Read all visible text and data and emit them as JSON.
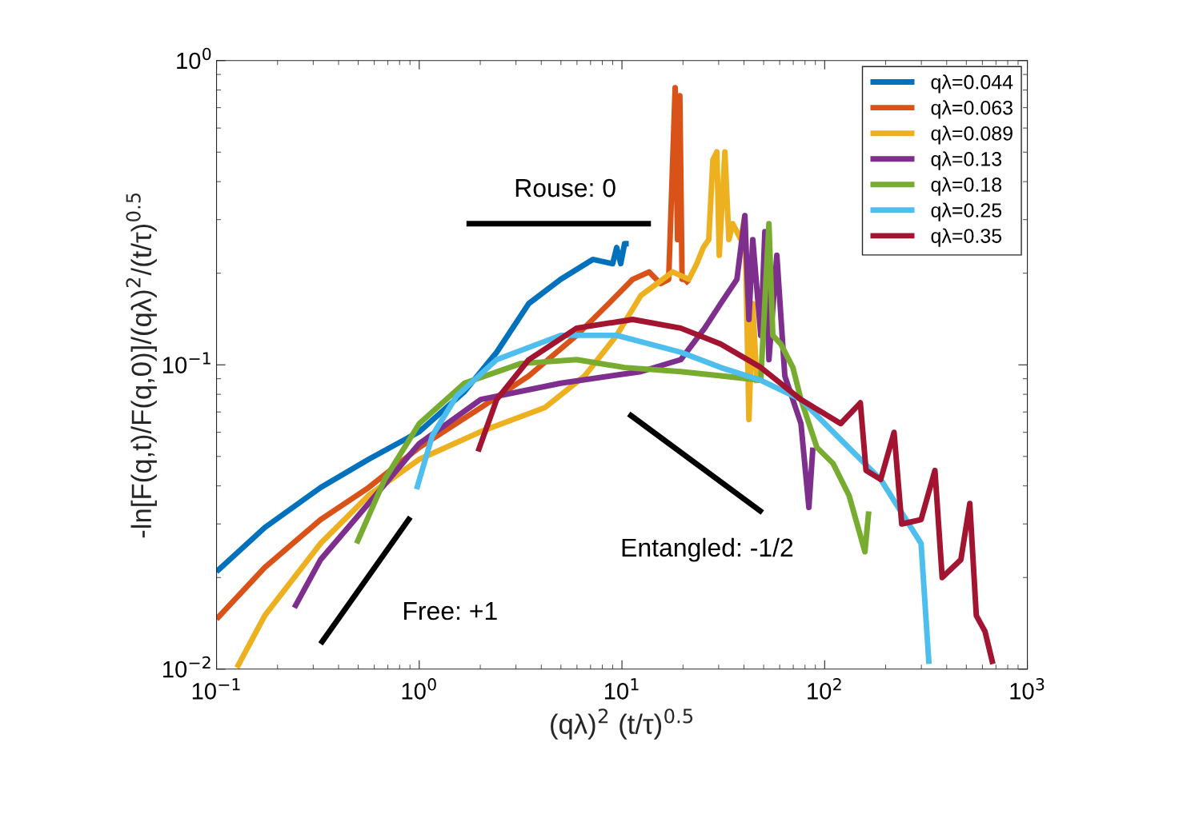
{
  "chart_data": {
    "type": "line",
    "xlabel": "(qλ)$^{2}$ (t/τ)$^{0.5}$",
    "ylabel": "-ln[F(q,t)/F(q,0)]/(qλ)$^{2}$/(t/τ)$^{0.5}$",
    "log": "xy",
    "grid": false,
    "legend": "top right",
    "line_style": "solid",
    "marker": "none",
    "xlim": [
      0.1,
      1000
    ],
    "ylim": [
      0.01,
      1
    ],
    "xticks": [
      {
        "value": 0.1,
        "label": "10$^{−1}$"
      },
      {
        "value": 1,
        "label": "10$^{0}$"
      },
      {
        "value": 10,
        "label": "10$^{1}$"
      },
      {
        "value": 100,
        "label": "10$^{2}$"
      },
      {
        "value": 1000,
        "label": "10$^{3}$"
      }
    ],
    "yticks": [
      {
        "value": 0.01,
        "label": "10$^{−2}$"
      },
      {
        "value": 0.1,
        "label": "10$^{−1}$"
      },
      {
        "value": 1,
        "label": "10$^{0}$"
      }
    ],
    "series": [
      {
        "name": "qλ=0.044",
        "color": "#0072bd",
        "x": [
          0.1,
          0.173,
          0.326,
          0.562,
          1.0,
          1.67,
          2.41,
          3.47,
          4.99,
          7.18,
          9.0,
          9.42,
          9.86,
          10.3,
          10.8
        ],
        "values": [
          0.0209,
          0.0292,
          0.0395,
          0.0489,
          0.0603,
          0.0816,
          0.11,
          0.159,
          0.191,
          0.222,
          0.215,
          0.243,
          0.215,
          0.25,
          0.25
        ]
      },
      {
        "name": "qλ=0.063",
        "color": "#d95319",
        "x": [
          0.1,
          0.173,
          0.326,
          0.562,
          1.0,
          2.01,
          3.47,
          5.98,
          8.61,
          11.3,
          13.6,
          15.5,
          17.0,
          18.3,
          18.8,
          19.3,
          19.8,
          20.4,
          21.4
        ],
        "values": [
          0.0146,
          0.0216,
          0.031,
          0.0395,
          0.0535,
          0.0723,
          0.092,
          0.125,
          0.159,
          0.191,
          0.202,
          0.185,
          0.191,
          0.814,
          0.258,
          0.766,
          0.191,
          0.191,
          0.185
        ]
      },
      {
        "name": "qλ=0.089",
        "color": "#edb120",
        "x": [
          0.126,
          0.173,
          0.326,
          0.562,
          1.0,
          2.01,
          4.16,
          6.55,
          9.42,
          12.4,
          14.9,
          17.8,
          21.4,
          23.4,
          25.2,
          26.8,
          28.1,
          29.4,
          30.2,
          32.2,
          33.7,
          35.2,
          38.6,
          40.4,
          42.3,
          44.2,
          46.3
        ],
        "values": [
          0.0101,
          0.015,
          0.0259,
          0.0372,
          0.0489,
          0.0603,
          0.0723,
          0.092,
          0.125,
          0.169,
          0.185,
          0.202,
          0.191,
          0.215,
          0.243,
          0.258,
          0.472,
          0.501,
          0.229,
          0.501,
          0.258,
          0.291,
          0.258,
          0.309,
          0.0661,
          0.159,
          0.087
        ]
      },
      {
        "name": "qλ=0.13",
        "color": "#7e2f8e",
        "x": [
          0.242,
          0.326,
          0.562,
          1.0,
          2.01,
          4.99,
          12.4,
          19.5,
          25.6,
          30.7,
          36.9,
          40.4,
          42.3,
          44.2,
          48.4,
          50.7,
          53.1,
          58.1,
          63.6,
          76.4,
          83.6,
          87.5
        ],
        "values": [
          0.0159,
          0.0229,
          0.035,
          0.0551,
          0.0769,
          0.087,
          0.095,
          0.104,
          0.132,
          0.159,
          0.191,
          0.309,
          0.141,
          0.258,
          0.125,
          0.274,
          0.104,
          0.229,
          0.092,
          0.0641,
          0.034,
          0.0535
        ]
      },
      {
        "name": "qλ=0.18",
        "color": "#77ac30",
        "x": [
          0.491,
          0.675,
          1.0,
          1.67,
          3.17,
          5.98,
          10.3,
          19.5,
          30.7,
          48.4,
          53.1,
          55.5,
          60.8,
          69.7,
          76.4,
          91.6,
          110,
          132,
          158,
          165
        ],
        "values": [
          0.0259,
          0.042,
          0.0641,
          0.087,
          0.101,
          0.104,
          0.098,
          0.095,
          0.092,
          0.089,
          0.291,
          0.125,
          0.117,
          0.098,
          0.0769,
          0.0535,
          0.0474,
          0.0372,
          0.0243,
          0.033
        ]
      },
      {
        "name": "qλ=0.25",
        "color": "#4dbeee",
        "x": [
          0.97,
          1.16,
          1.53,
          2.41,
          4.99,
          9.42,
          19.5,
          30.7,
          48.4,
          76.4,
          120,
          189,
          299,
          327
        ],
        "values": [
          0.039,
          0.0585,
          0.079,
          0.104,
          0.125,
          0.125,
          0.11,
          0.098,
          0.089,
          0.0769,
          0.0568,
          0.042,
          0.0259,
          0.0104
        ]
      },
      {
        "name": "qλ=0.35",
        "color": "#a2142f",
        "x": [
          1.95,
          2.41,
          3.47,
          5.98,
          11.3,
          19.5,
          30.7,
          48.4,
          76.4,
          120,
          150,
          160,
          189,
          220,
          240,
          299,
          350,
          380,
          470,
          520,
          560,
          618,
          676
        ],
        "values": [
          0.0519,
          0.0769,
          0.104,
          0.132,
          0.141,
          0.132,
          0.117,
          0.098,
          0.0769,
          0.0641,
          0.075,
          0.045,
          0.042,
          0.06,
          0.03,
          0.031,
          0.045,
          0.02,
          0.0229,
          0.035,
          0.015,
          0.0133,
          0.0104
        ]
      },
      {
        "color": "#000000",
        "x": [
          1.71,
          13.9
        ],
        "values": [
          0.291,
          0.291
        ]
      },
      {
        "color": "#000000",
        "x": [
          0.326,
          0.904
        ],
        "values": [
          0.0121,
          0.0316
        ]
      },
      {
        "color": "#000000",
        "x": [
          10.8,
          49.3
        ],
        "values": [
          0.069,
          0.0327
        ]
      }
    ],
    "annotations": [
      "Rouse: 0",
      "Free: +1",
      "Entangled: -1/2"
    ]
  }
}
